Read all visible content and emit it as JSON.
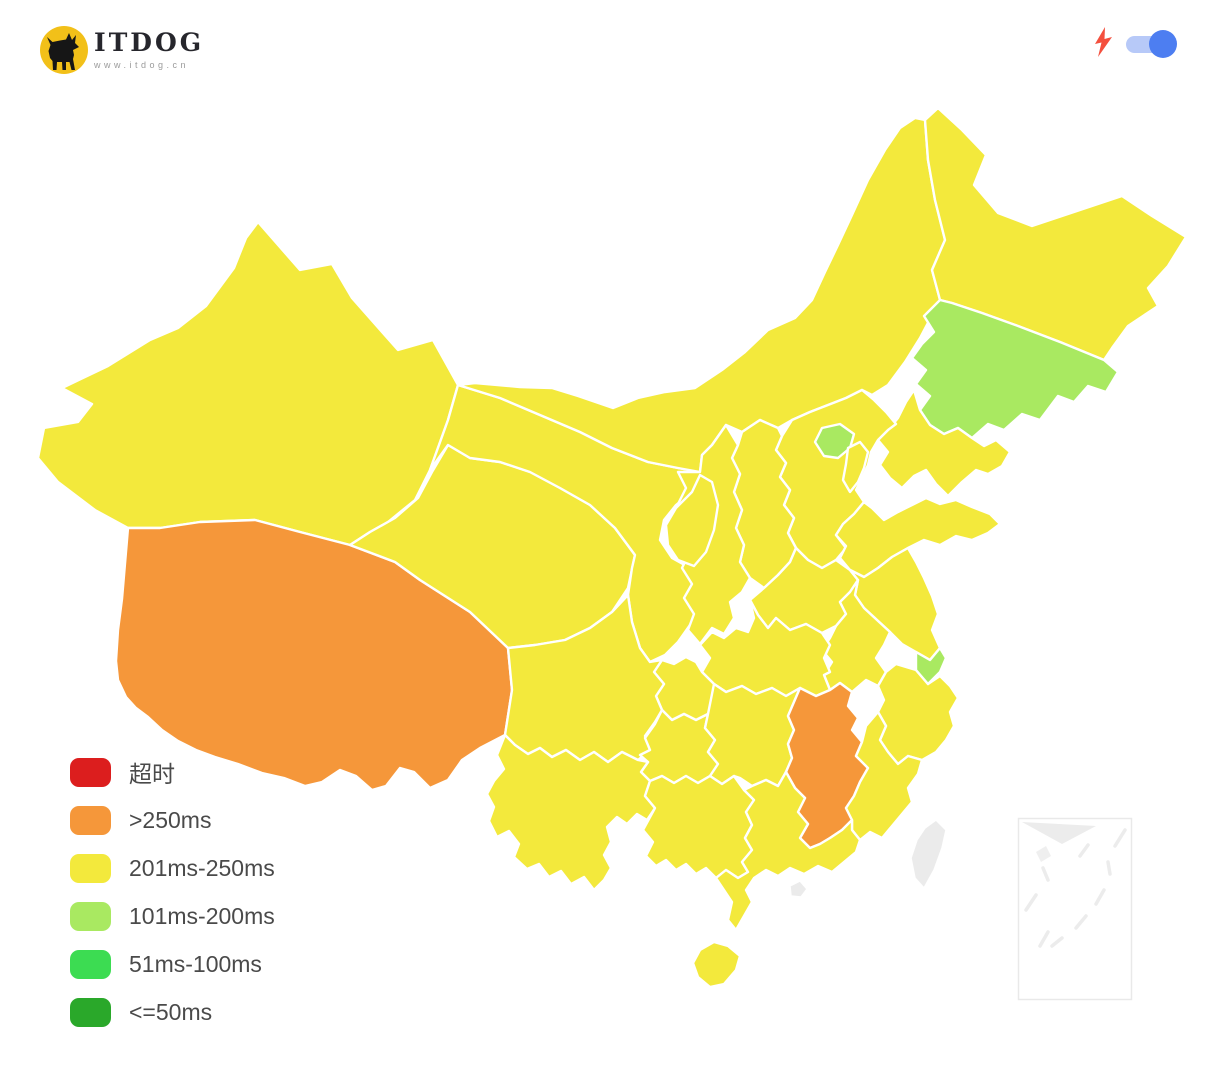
{
  "brand": {
    "name": "ITDOG",
    "subtitle": "www.itdog.cn",
    "badge_color": "#f2c019"
  },
  "header": {
    "speed_icon_color": "#f4503e",
    "toggle": {
      "state": "on",
      "track_color": "#b7c9f8",
      "knob_color": "#4d7ef1"
    }
  },
  "legend": {
    "items": [
      {
        "label": "超时",
        "status": "timeout",
        "color": "#dc1e1e"
      },
      {
        "label": ">250ms",
        "status": "gt250",
        "color": "#f5973a"
      },
      {
        "label": "201ms-250ms",
        "status": "ms201_250",
        "color": "#f3e93c"
      },
      {
        "label": "101ms-200ms",
        "status": "ms101_200",
        "color": "#a9e961"
      },
      {
        "label": "51ms-100ms",
        "status": "ms51_100",
        "color": "#3cdc52"
      },
      {
        "label": "<=50ms",
        "status": "le50",
        "color": "#2aa82a"
      }
    ],
    "nodata_color": "#ebebeb"
  },
  "map": {
    "border_color": "#ffffff",
    "regions": [
      {
        "id": "xinjiang",
        "name": "新疆",
        "status": "ms201_250"
      },
      {
        "id": "xizang",
        "name": "西藏",
        "status": "gt250"
      },
      {
        "id": "qinghai",
        "name": "青海",
        "status": "ms201_250"
      },
      {
        "id": "gansu",
        "name": "甘肃",
        "status": "ms201_250"
      },
      {
        "id": "neimenggu",
        "name": "内蒙古",
        "status": "ms201_250"
      },
      {
        "id": "heilongjiang",
        "name": "黑龙江",
        "status": "ms201_250"
      },
      {
        "id": "jilin",
        "name": "吉林",
        "status": "ms101_200"
      },
      {
        "id": "liaoning",
        "name": "辽宁",
        "status": "ms201_250"
      },
      {
        "id": "hebei",
        "name": "河北",
        "status": "ms201_250"
      },
      {
        "id": "shanxi",
        "name": "山西",
        "status": "ms201_250"
      },
      {
        "id": "shaanxi",
        "name": "陕西",
        "status": "ms201_250"
      },
      {
        "id": "ningxia",
        "name": "宁夏",
        "status": "ms201_250"
      },
      {
        "id": "shandong",
        "name": "山东",
        "status": "ms201_250"
      },
      {
        "id": "henan",
        "name": "河南",
        "status": "ms201_250"
      },
      {
        "id": "jiangsu",
        "name": "江苏",
        "status": "ms201_250"
      },
      {
        "id": "anhui",
        "name": "安徽",
        "status": "ms201_250"
      },
      {
        "id": "hubei",
        "name": "湖北",
        "status": "ms201_250"
      },
      {
        "id": "chongqing",
        "name": "重庆",
        "status": "ms201_250"
      },
      {
        "id": "sichuan",
        "name": "四川",
        "status": "ms201_250"
      },
      {
        "id": "guizhou",
        "name": "贵州",
        "status": "ms201_250"
      },
      {
        "id": "yunnan",
        "name": "云南",
        "status": "ms201_250"
      },
      {
        "id": "hunan",
        "name": "湖南",
        "status": "ms201_250"
      },
      {
        "id": "jiangxi",
        "name": "江西",
        "status": "gt250"
      },
      {
        "id": "zhejiang",
        "name": "浙江",
        "status": "ms201_250"
      },
      {
        "id": "fujian",
        "name": "福建",
        "status": "ms201_250"
      },
      {
        "id": "guangxi",
        "name": "广西",
        "status": "ms201_250"
      },
      {
        "id": "guangdong",
        "name": "广东",
        "status": "ms201_250"
      },
      {
        "id": "hainan",
        "name": "海南",
        "status": "ms201_250"
      },
      {
        "id": "beijing",
        "name": "北京",
        "status": "ms101_200"
      },
      {
        "id": "tianjin",
        "name": "天津",
        "status": "ms201_250"
      },
      {
        "id": "shanghai",
        "name": "上海",
        "status": "ms101_200"
      },
      {
        "id": "taiwan",
        "name": "台湾",
        "status": "nodata"
      },
      {
        "id": "xianggang",
        "name": "香港",
        "status": "nodata"
      }
    ]
  }
}
